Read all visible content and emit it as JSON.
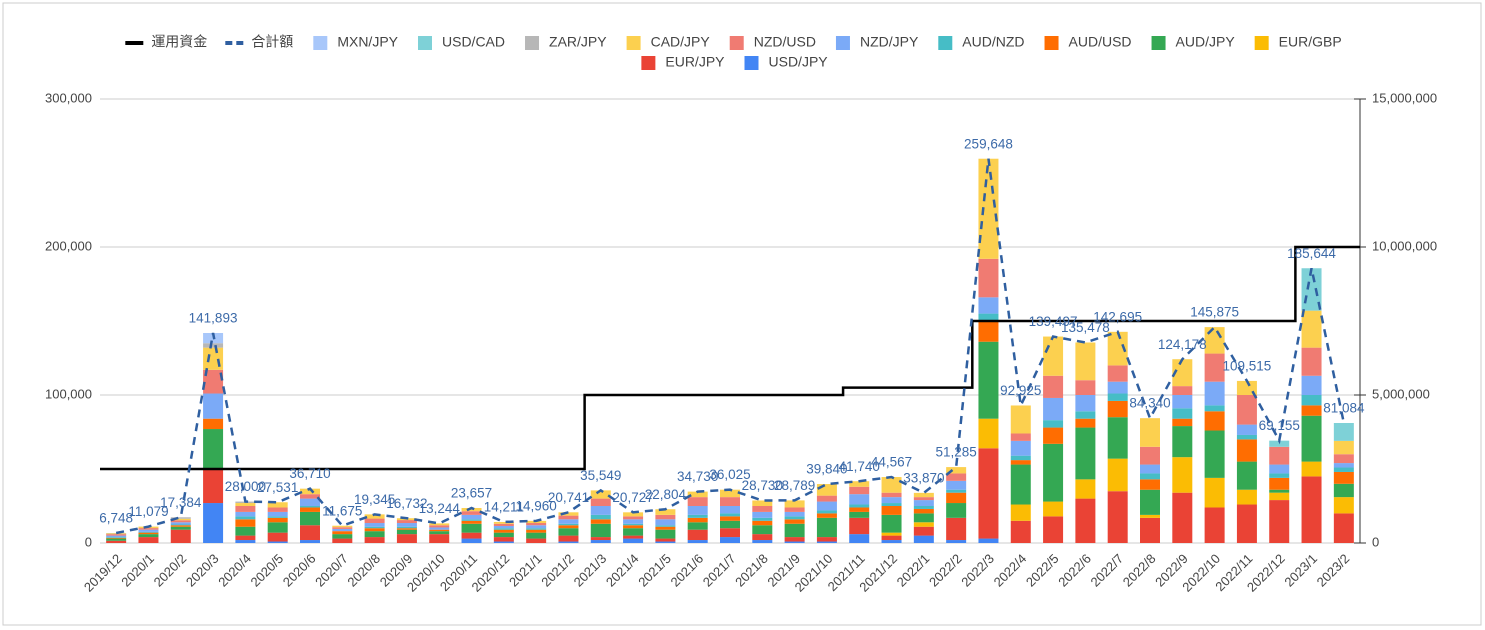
{
  "chart_data": {
    "type": "bar",
    "stacked": true,
    "categories": [
      "2019/12",
      "2020/1",
      "2020/2",
      "2020/3",
      "2020/4",
      "2020/5",
      "2020/6",
      "2020/7",
      "2020/8",
      "2020/9",
      "2020/10",
      "2020/11",
      "2020/12",
      "2021/1",
      "2021/2",
      "2021/3",
      "2021/4",
      "2021/5",
      "2021/6",
      "2021/7",
      "2021/8",
      "2021/9",
      "2021/10",
      "2021/11",
      "2021/12",
      "2022/1",
      "2022/2",
      "2022/3",
      "2022/4",
      "2022/5",
      "2022/6",
      "2022/7",
      "2022/8",
      "2022/9",
      "2022/10",
      "2022/11",
      "2022/12",
      "2023/1",
      "2023/2"
    ],
    "ylim": [
      0,
      300000
    ],
    "yticks": [
      0,
      {
        "value": 100000,
        "label": "100,000"
      },
      {
        "value": 200000,
        "label": "200,000"
      },
      {
        "value": 300000,
        "label": "300,000"
      }
    ],
    "y2lim": [
      0,
      15000000
    ],
    "y2ticks": [
      0,
      {
        "value": 5000000,
        "label": "5,000,000"
      },
      {
        "value": 10000000,
        "label": "10,000,000"
      },
      {
        "value": 15000000,
        "label": "15,000,000"
      }
    ],
    "grid": true,
    "legend": "top",
    "series": [
      {
        "name": "運用資金",
        "type": "line",
        "axis": "y2",
        "color": "#000000",
        "values": [
          2500000,
          2500000,
          2500000,
          2500000,
          2500000,
          2500000,
          2500000,
          2500000,
          2500000,
          2500000,
          2500000,
          2500000,
          2500000,
          2500000,
          2500000,
          5000000,
          5000000,
          5000000,
          5000000,
          5000000,
          5000000,
          5000000,
          5000000,
          5250000,
          5250000,
          5250000,
          5250000,
          7500000,
          7500000,
          7500000,
          7500000,
          7500000,
          7500000,
          7500000,
          7500000,
          7500000,
          7500000,
          10000000,
          10000000
        ]
      },
      {
        "name": "合計額",
        "type": "line",
        "dash": true,
        "color": "#2f5fa0",
        "values": [
          6748,
          11079,
          17384,
          141893,
          28000,
          27531,
          36710,
          11675,
          19345,
          16732,
          13244,
          23657,
          14211,
          14960,
          20741,
          35549,
          20727,
          22804,
          34730,
          36025,
          28730,
          28789,
          39840,
          41740,
          44567,
          33870,
          51285,
          259648,
          92925,
          139497,
          135478,
          142695,
          84340,
          124178,
          145875,
          109515,
          69155,
          185644,
          81084
        ],
        "value_labels": [
          "6,748",
          "11,079",
          "17,384",
          "141,893",
          "28,000",
          "27,531",
          "36,710",
          "11,675",
          "19,345",
          "16,732",
          "13,244",
          "23,657",
          "14,211",
          "14,960",
          "20,741",
          "35,549",
          "20,727",
          "22,804",
          "34,730",
          "36,025",
          "28,730",
          "28,789",
          "39,840",
          "41,740",
          "44,567",
          "33,870",
          "51,285",
          "259,648",
          "92,925",
          "139,497",
          "135,478",
          "142,695",
          "84,340",
          "124,178",
          "145,875",
          "109,515",
          "69,155",
          "185,644",
          "81,084"
        ]
      },
      {
        "name": "MXN/JPY",
        "type": "bar",
        "color": "#a8c7fa",
        "values": [
          0,
          0,
          0,
          6893,
          0,
          0,
          0,
          0,
          0,
          0,
          0,
          0,
          0,
          0,
          0,
          0,
          0,
          0,
          0,
          0,
          0,
          0,
          0,
          0,
          0,
          0,
          0,
          0,
          0,
          0,
          0,
          0,
          0,
          0,
          0,
          0,
          0,
          0,
          0
        ]
      },
      {
        "name": "USD/CAD",
        "type": "bar",
        "color": "#7ed1d7",
        "values": [
          0,
          0,
          0,
          0,
          0,
          0,
          0,
          0,
          0,
          0,
          0,
          0,
          0,
          0,
          0,
          0,
          0,
          0,
          0,
          0,
          0,
          0,
          0,
          0,
          0,
          0,
          0,
          0,
          0,
          0,
          0,
          0,
          0,
          0,
          0,
          0,
          4155,
          28644,
          12084
        ]
      },
      {
        "name": "ZAR/JPY",
        "type": "bar",
        "color": "#b7b7b7",
        "values": [
          248,
          0,
          1000,
          3000,
          1000,
          0,
          0,
          0,
          0,
          0,
          0,
          0,
          0,
          0,
          0,
          0,
          0,
          0,
          0,
          0,
          0,
          0,
          0,
          0,
          0,
          0,
          0,
          0,
          0,
          0,
          0,
          0,
          0,
          0,
          0,
          0,
          0,
          0,
          0
        ]
      },
      {
        "name": "CAD/JPY",
        "type": "bar",
        "color": "#fcd04f",
        "values": [
          500,
          1000,
          1000,
          15000,
          2000,
          3531,
          3710,
          1000,
          2845,
          1232,
          1244,
          2157,
          1211,
          1460,
          2241,
          5549,
          2727,
          3804,
          3730,
          5025,
          3730,
          4789,
          7840,
          3740,
          10567,
          2870,
          4285,
          67648,
          18925,
          26497,
          25478,
          22695,
          19340,
          18178,
          17875,
          9515,
          0,
          25000,
          9000
        ]
      },
      {
        "name": "NZD/USD",
        "type": "bar",
        "color": "#f07b72",
        "values": [
          1000,
          1079,
          1384,
          16000,
          4000,
          3000,
          3000,
          1175,
          3000,
          2000,
          1500,
          2500,
          1500,
          1500,
          2500,
          5000,
          2000,
          3000,
          6000,
          6000,
          4000,
          3000,
          4000,
          5000,
          3000,
          2000,
          5000,
          26000,
          5000,
          15000,
          10000,
          11000,
          12000,
          6000,
          19000,
          20000,
          12000,
          19000,
          6000
        ]
      },
      {
        "name": "NZD/JPY",
        "type": "bar",
        "color": "#7baaf7",
        "values": [
          1000,
          1500,
          1500,
          17000,
          3000,
          3000,
          5000,
          1500,
          2500,
          2500,
          1500,
          3000,
          1500,
          2000,
          3000,
          6000,
          3000,
          4000,
          6000,
          5000,
          4000,
          3000,
          6000,
          7000,
          4000,
          4000,
          6000,
          11000,
          10000,
          15000,
          11000,
          8000,
          6000,
          9000,
          16000,
          7000,
          6000,
          13000,
          3000
        ]
      },
      {
        "name": "AUD/NZD",
        "type": "bar",
        "color": "#46bdc6",
        "values": [
          500,
          500,
          500,
          0,
          2000,
          1000,
          1000,
          0,
          1000,
          1000,
          0,
          1000,
          1000,
          1000,
          1000,
          3000,
          1000,
          1000,
          2000,
          2000,
          2000,
          2000,
          2000,
          2000,
          2000,
          2000,
          2000,
          5000,
          3000,
          5000,
          5000,
          5000,
          4000,
          7000,
          4000,
          3000,
          3000,
          7000,
          3000
        ]
      },
      {
        "name": "AUD/USD",
        "type": "bar",
        "color": "#ff6d01",
        "values": [
          500,
          1000,
          1000,
          7000,
          5000,
          3000,
          3000,
          2000,
          2000,
          1000,
          1000,
          2000,
          2000,
          2000,
          2000,
          3000,
          2000,
          2000,
          3000,
          3000,
          3000,
          3000,
          3000,
          3000,
          6000,
          3000,
          7000,
          14000,
          3000,
          11000,
          6000,
          11000,
          7000,
          5000,
          13000,
          15000,
          8000,
          7000,
          8000
        ]
      },
      {
        "name": "AUD/JPY",
        "type": "bar",
        "color": "#34a853",
        "values": [
          1500,
          2000,
          2000,
          27000,
          6000,
          7000,
          9000,
          3000,
          4000,
          3000,
          2000,
          6000,
          3000,
          4000,
          5000,
          9000,
          5000,
          6000,
          5000,
          5000,
          6000,
          9000,
          13000,
          4000,
          12000,
          6000,
          10000,
          52000,
          27000,
          39000,
          35000,
          28000,
          17000,
          21000,
          32000,
          19000,
          2000,
          31000,
          9000
        ]
      },
      {
        "name": "EUR/GBP",
        "type": "bar",
        "color": "#fbbc04",
        "values": [
          0,
          0,
          0,
          0,
          0,
          0,
          0,
          0,
          0,
          0,
          0,
          0,
          0,
          0,
          0,
          0,
          0,
          0,
          0,
          0,
          0,
          0,
          0,
          0,
          2000,
          3000,
          0,
          20000,
          11000,
          10000,
          13000,
          22000,
          2000,
          24000,
          20000,
          10000,
          5000,
          10000,
          11000
        ]
      },
      {
        "name": "EUR/JPY",
        "type": "bar",
        "color": "#ea4335",
        "values": [
          1500,
          4000,
          9000,
          23000,
          3000,
          6000,
          10000,
          3000,
          4000,
          6000,
          6000,
          4000,
          3000,
          3000,
          4000,
          2000,
          2000,
          2000,
          7000,
          6000,
          4000,
          3000,
          3000,
          11000,
          3000,
          6000,
          15000,
          61000,
          15000,
          18000,
          30000,
          35000,
          17000,
          34000,
          24000,
          26000,
          29000,
          45000,
          20000
        ]
      },
      {
        "name": "USD/JPY",
        "type": "bar",
        "color": "#4285f4",
        "values": [
          0,
          0,
          0,
          27000,
          2000,
          1000,
          2000,
          0,
          0,
          0,
          0,
          3000,
          1000,
          0,
          1000,
          2000,
          3000,
          1000,
          2000,
          4000,
          2000,
          1000,
          1000,
          6000,
          2000,
          5000,
          2000,
          3000,
          0,
          0,
          0,
          0,
          0,
          0,
          0,
          0,
          0,
          0,
          0
        ]
      }
    ]
  }
}
